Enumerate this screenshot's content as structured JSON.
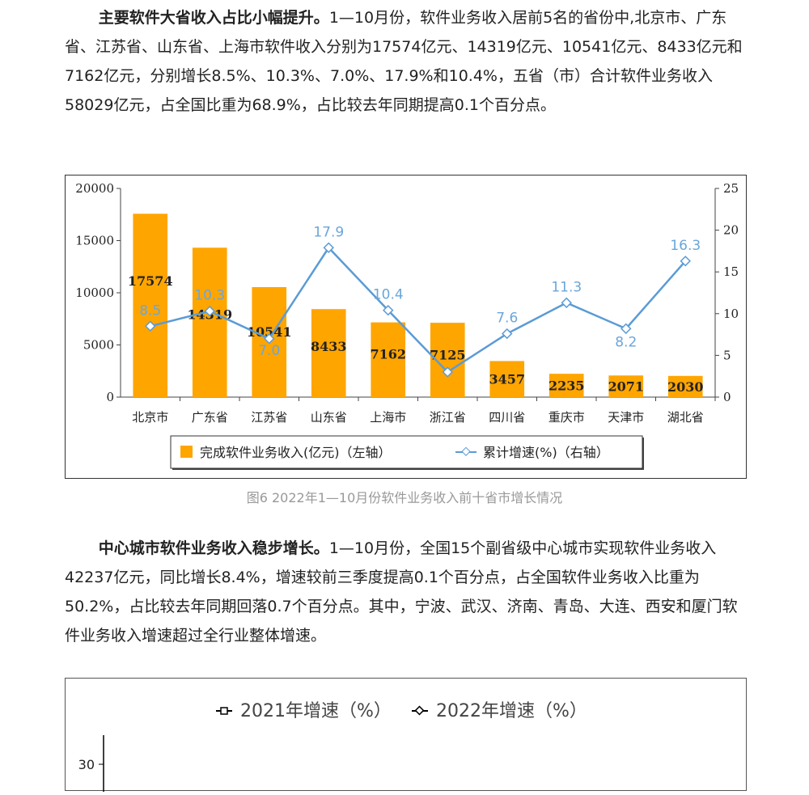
{
  "paragraph1": {
    "lead": "主要软件大省收入占比小幅提升。",
    "text": "1—10月份，软件业务收入居前5名的省份中,北京市、广东省、江苏省、山东省、上海市软件收入分别为17574亿元、14319亿元、10541亿元、8433亿元和7162亿元，分别增长8.5%、10.3%、7.0%、17.9%和10.4%，五省（市）合计软件业务收入58029亿元，占全国比重为68.9%，占比较去年同期提高0.1个百分点。"
  },
  "chart_data": {
    "type": "bar",
    "categories": [
      "北京市",
      "广东省",
      "江苏省",
      "山东省",
      "上海市",
      "浙江省",
      "四川省",
      "重庆市",
      "天津市",
      "湖北省"
    ],
    "series": [
      {
        "name": "完成软件业务收入(亿元)（左轴）",
        "type": "bar",
        "axis": "left",
        "values": [
          17574,
          14319,
          10541,
          8433,
          7162,
          7125,
          3457,
          2235,
          2071,
          2030
        ]
      },
      {
        "name": "累计增速(%)（右轴）",
        "type": "line",
        "axis": "right",
        "values": [
          8.5,
          10.3,
          7.0,
          17.9,
          10.4,
          3.0,
          7.6,
          11.3,
          8.2,
          16.3
        ],
        "labels": [
          "8.5",
          "10.3",
          "7.0",
          "17.9",
          "10.4",
          "",
          "7.6",
          "11.3",
          "8.2",
          "16.3"
        ]
      }
    ],
    "ylim_left": [
      0,
      20000
    ],
    "yticks_left": [
      "0",
      "5000",
      "10000",
      "15000",
      "20000"
    ],
    "ylim_right": [
      0,
      25
    ],
    "yticks_right": [
      "0",
      "5",
      "10",
      "15",
      "20",
      "25"
    ],
    "legend_placement": "bottom",
    "grid": false,
    "colors": {
      "bar": "#FFA500",
      "line": "#5B9BD5",
      "line_label": "#6AA6DA"
    }
  },
  "caption": "图6  2022年1—10月份软件业务收入前十省市增长情况",
  "paragraph2": {
    "lead": "中心城市软件业务收入稳步增长。",
    "text": "1—10月份，全国15个副省级中心城市实现软件业务收入42237亿元，同比增长8.4%，增速较前三季度提高0.1个百分点，占全国软件业务收入比重为50.2%，占比较去年同期回落0.7个百分点。其中，宁波、武汉、济南、青岛、大连、西安和厦门软件业务收入增速超过全行业整体增速。"
  },
  "chart2": {
    "legend": [
      "2021年增速（%）",
      "2022年增速（%）"
    ],
    "ytick_visible": "30",
    "colors": {
      "series1": "#000000",
      "series2": "#000000"
    }
  }
}
